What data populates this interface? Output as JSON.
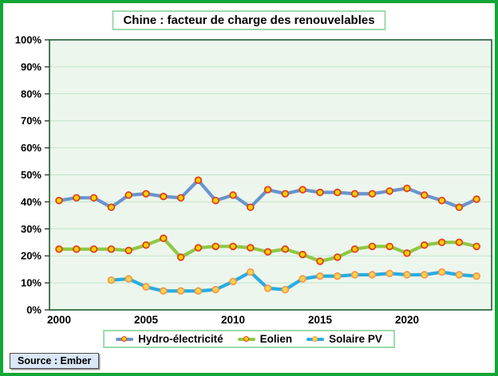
{
  "title": "Chine : facteur de charge des renouvelables",
  "source_label": "Source : Ember",
  "colors": {
    "outer_border": "#12a637",
    "box_border": "#99dbab",
    "plot_bg": "#edf6ed",
    "gridline": "#c2e4c6",
    "plot_frame": "#1b5e31",
    "tick": "#3a3a3a",
    "axis_text": "#000000",
    "source_bg": "#d9e7f8"
  },
  "chart_data": {
    "type": "line",
    "title": "Chine : facteur de charge des renouvelables",
    "xlabel": "",
    "ylabel": "",
    "ylim": [
      0,
      100
    ],
    "ytick_step": 10,
    "grid": true,
    "legend_position": "bottom",
    "years": [
      2000,
      2001,
      2002,
      2003,
      2004,
      2005,
      2006,
      2007,
      2008,
      2009,
      2010,
      2011,
      2012,
      2013,
      2014,
      2015,
      2016,
      2017,
      2018,
      2019,
      2020,
      2021,
      2022,
      2023,
      2024
    ],
    "xticks": [
      2000,
      2005,
      2010,
      2015,
      2020
    ],
    "xticklabels": [
      "2000",
      "2005",
      "2010",
      "2015",
      "2020"
    ],
    "yticklabels": [
      "0%",
      "10%",
      "20%",
      "30%",
      "40%",
      "50%",
      "60%",
      "70%",
      "80%",
      "90%",
      "100%"
    ],
    "series": [
      {
        "id": "hydro",
        "name": "Hydro-électricité",
        "color": "#6a93cd",
        "marker_fill": "#ffcc00",
        "marker_stroke": "#e03c1e",
        "start_year": 2000,
        "values": [
          40.5,
          41.5,
          41.5,
          38,
          42.5,
          43,
          42,
          41.5,
          48,
          40.5,
          42.5,
          38,
          44.5,
          43,
          44.5,
          43.5,
          43.5,
          43,
          43,
          44,
          45,
          42.5,
          40.5,
          38,
          41
        ]
      },
      {
        "id": "eolien",
        "name": "Eolien",
        "color": "#8fc843",
        "marker_fill": "#ffcc00",
        "marker_stroke": "#e03c1e",
        "start_year": 2000,
        "values": [
          22.5,
          22.5,
          22.5,
          22.5,
          22,
          24,
          26.5,
          19.5,
          23,
          23.5,
          23.5,
          23,
          21.5,
          22.5,
          20.5,
          18,
          19.5,
          22.5,
          23.5,
          23.5,
          21,
          24,
          25,
          25,
          23.5
        ]
      },
      {
        "id": "solaire",
        "name": "Solaire PV",
        "color": "#29abe2",
        "marker_fill": "#ffd34d",
        "marker_stroke": "#f79646",
        "start_year": 2003,
        "values": [
          11,
          11.5,
          8.5,
          7,
          7,
          7,
          7.5,
          10.5,
          14,
          8,
          7.5,
          11.5,
          12.5,
          12.5,
          13,
          13,
          13.5,
          13,
          13,
          14,
          13,
          12.5
        ]
      }
    ]
  }
}
